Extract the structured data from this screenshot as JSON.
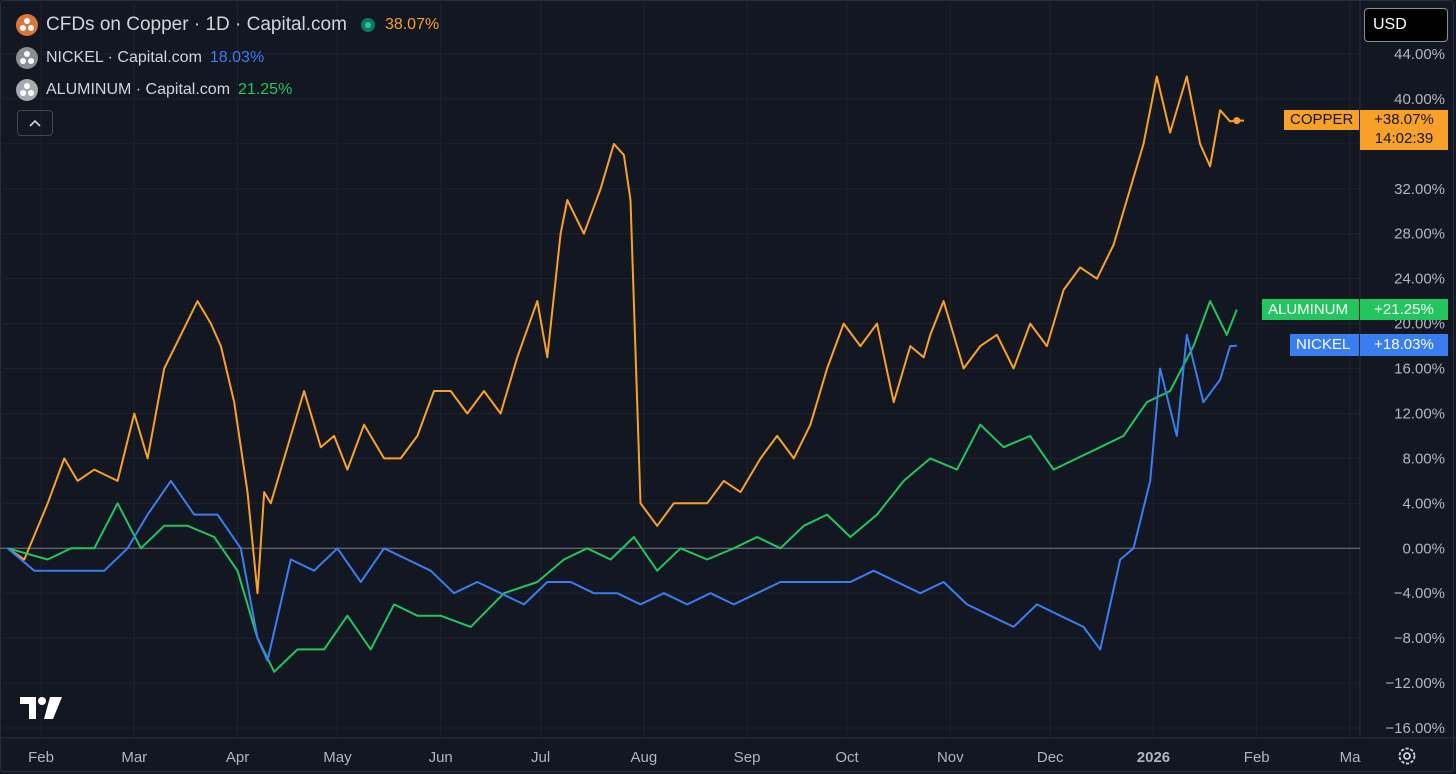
{
  "legend": {
    "main": {
      "title": "CFDs on Copper · 1D · Capital.com",
      "value": "38.07%",
      "color": "#f7a128",
      "icon_color": "#d9773a",
      "status_icon": "market-open-icon"
    },
    "compare": [
      {
        "title": "NICKEL · Capital.com",
        "value": "18.03%",
        "color": "#3a7df0",
        "icon_color": "#8a8f96"
      },
      {
        "title": "ALUMINUM · Capital.com",
        "value": "21.25%",
        "color": "#22c55e",
        "icon_color": "#a6aab0"
      }
    ],
    "collapse_icon": "chevron-up-icon"
  },
  "currency": "USD",
  "badges": {
    "copper": {
      "label": "COPPER",
      "value": "+38.07%",
      "timer": "14:02:39"
    },
    "aluminum": {
      "label": "ALUMINUM",
      "value": "+21.25%"
    },
    "nickel": {
      "label": "NICKEL",
      "value": "+18.03%"
    }
  },
  "logo_icon": "tradingview-logo-icon",
  "settings_icon": "gear-icon",
  "chart_data": {
    "type": "line",
    "y_unit": "%",
    "ylim": [
      -16,
      44
    ],
    "y_ticks": [
      "44.00%",
      "40.00%",
      "36.00%",
      "32.00%",
      "28.00%",
      "24.00%",
      "20.00%",
      "16.00%",
      "12.00%",
      "8.00%",
      "4.00%",
      "0.00%",
      "−4.00%",
      "−8.00%",
      "−12.00%",
      "−16.00%"
    ],
    "y_tick_values": [
      44,
      40,
      36,
      32,
      28,
      24,
      20,
      16,
      12,
      8,
      4,
      0,
      -4,
      -8,
      -12,
      -16
    ],
    "x_ticks": [
      "Feb",
      "Mar",
      "Apr",
      "May",
      "Jun",
      "Jul",
      "Aug",
      "Sep",
      "Oct",
      "Nov",
      "Dec",
      "2026",
      "Feb",
      "Ma"
    ],
    "x_tick_dates": [
      "2025-02-01",
      "2025-03-01",
      "2025-04-01",
      "2025-05-01",
      "2025-06-01",
      "2025-07-01",
      "2025-08-01",
      "2025-09-01",
      "2025-10-01",
      "2025-11-01",
      "2025-12-01",
      "2026-01-01",
      "2026-02-01",
      "2026-03-01"
    ],
    "bold_tick": "2026",
    "x_range": [
      "2025-01-22",
      "2026-03-02"
    ],
    "grid": true,
    "series": [
      {
        "name": "COPPER",
        "color": "#f7a128",
        "x": [
          "2025-01-22",
          "2025-01-27",
          "2025-02-03",
          "2025-02-08",
          "2025-02-12",
          "2025-02-17",
          "2025-02-24",
          "2025-03-01",
          "2025-03-05",
          "2025-03-10",
          "2025-03-15",
          "2025-03-20",
          "2025-03-24",
          "2025-03-27",
          "2025-03-31",
          "2025-04-04",
          "2025-04-07",
          "2025-04-09",
          "2025-04-11",
          "2025-04-15",
          "2025-04-21",
          "2025-04-26",
          "2025-04-30",
          "2025-05-04",
          "2025-05-09",
          "2025-05-15",
          "2025-05-20",
          "2025-05-25",
          "2025-05-30",
          "2025-06-04",
          "2025-06-09",
          "2025-06-14",
          "2025-06-19",
          "2025-06-24",
          "2025-06-30",
          "2025-07-03",
          "2025-07-07",
          "2025-07-09",
          "2025-07-14",
          "2025-07-19",
          "2025-07-23",
          "2025-07-26",
          "2025-07-28",
          "2025-07-31",
          "2025-08-05",
          "2025-08-10",
          "2025-08-15",
          "2025-08-20",
          "2025-08-25",
          "2025-08-30",
          "2025-09-05",
          "2025-09-10",
          "2025-09-15",
          "2025-09-20",
          "2025-09-25",
          "2025-09-30",
          "2025-10-05",
          "2025-10-10",
          "2025-10-15",
          "2025-10-20",
          "2025-10-24",
          "2025-10-26",
          "2025-10-30",
          "2025-11-05",
          "2025-11-10",
          "2025-11-15",
          "2025-11-20",
          "2025-11-25",
          "2025-11-30",
          "2025-12-05",
          "2025-12-10",
          "2025-12-15",
          "2025-12-20",
          "2025-12-25",
          "2025-12-29",
          "2026-01-02",
          "2026-01-06",
          "2026-01-11",
          "2026-01-15",
          "2026-01-18",
          "2026-01-21",
          "2026-01-24",
          "2026-01-26"
        ],
        "y": [
          0,
          -1,
          4,
          8,
          6,
          7,
          6,
          12,
          8,
          16,
          19,
          22,
          20,
          18,
          13,
          5,
          -4,
          5,
          4,
          8,
          14,
          9,
          10,
          7,
          11,
          8,
          8,
          10,
          14,
          14,
          12,
          14,
          12,
          17,
          22,
          17,
          28,
          31,
          28,
          32,
          36,
          35,
          31,
          4,
          2,
          4,
          4,
          4,
          6,
          5,
          8,
          10,
          8,
          11,
          16,
          20,
          18,
          20,
          13,
          18,
          17,
          19,
          22,
          16,
          18,
          19,
          16,
          20,
          18,
          23,
          25,
          24,
          27,
          32,
          36,
          42,
          37,
          42,
          36,
          34,
          39,
          38,
          38.07
        ]
      },
      {
        "name": "ALUMINUM",
        "color": "#22c55e",
        "x": [
          "2025-01-22",
          "2025-02-03",
          "2025-02-10",
          "2025-02-17",
          "2025-02-24",
          "2025-03-03",
          "2025-03-10",
          "2025-03-17",
          "2025-03-25",
          "2025-04-01",
          "2025-04-07",
          "2025-04-12",
          "2025-04-19",
          "2025-04-27",
          "2025-05-04",
          "2025-05-11",
          "2025-05-18",
          "2025-05-25",
          "2025-06-01",
          "2025-06-10",
          "2025-06-20",
          "2025-06-30",
          "2025-07-08",
          "2025-07-15",
          "2025-07-22",
          "2025-07-29",
          "2025-08-05",
          "2025-08-12",
          "2025-08-20",
          "2025-08-28",
          "2025-09-04",
          "2025-09-11",
          "2025-09-18",
          "2025-09-25",
          "2025-10-02",
          "2025-10-10",
          "2025-10-18",
          "2025-10-26",
          "2025-11-03",
          "2025-11-10",
          "2025-11-17",
          "2025-11-25",
          "2025-12-02",
          "2025-12-09",
          "2025-12-16",
          "2025-12-23",
          "2025-12-30",
          "2026-01-06",
          "2026-01-13",
          "2026-01-18",
          "2026-01-23",
          "2026-01-26"
        ],
        "y": [
          0,
          -1,
          0,
          0,
          4,
          0,
          2,
          2,
          1,
          -2,
          -8,
          -11,
          -9,
          -9,
          -6,
          -9,
          -5,
          -6,
          -6,
          -7,
          -4,
          -3,
          -1,
          0,
          -1,
          1,
          -2,
          0,
          -1,
          0,
          1,
          0,
          2,
          3,
          1,
          3,
          6,
          8,
          7,
          11,
          9,
          10,
          7,
          8,
          9,
          10,
          13,
          14,
          18,
          22,
          19,
          21.25
        ]
      },
      {
        "name": "NICKEL",
        "color": "#3a7df0",
        "x": [
          "2025-01-22",
          "2025-01-30",
          "2025-02-06",
          "2025-02-13",
          "2025-02-20",
          "2025-02-27",
          "2025-03-05",
          "2025-03-12",
          "2025-03-19",
          "2025-03-26",
          "2025-04-02",
          "2025-04-07",
          "2025-04-10",
          "2025-04-17",
          "2025-04-24",
          "2025-05-01",
          "2025-05-08",
          "2025-05-15",
          "2025-05-22",
          "2025-05-29",
          "2025-06-05",
          "2025-06-12",
          "2025-06-19",
          "2025-06-26",
          "2025-07-03",
          "2025-07-10",
          "2025-07-17",
          "2025-07-24",
          "2025-07-31",
          "2025-08-07",
          "2025-08-14",
          "2025-08-21",
          "2025-08-28",
          "2025-09-04",
          "2025-09-11",
          "2025-09-18",
          "2025-09-25",
          "2025-10-02",
          "2025-10-09",
          "2025-10-16",
          "2025-10-23",
          "2025-10-30",
          "2025-11-06",
          "2025-11-13",
          "2025-11-20",
          "2025-11-27",
          "2025-12-04",
          "2025-12-11",
          "2025-12-16",
          "2025-12-22",
          "2025-12-26",
          "2025-12-31",
          "2026-01-03",
          "2026-01-08",
          "2026-01-11",
          "2026-01-16",
          "2026-01-21",
          "2026-01-24",
          "2026-01-26"
        ],
        "y": [
          0,
          -2,
          -2,
          -2,
          -2,
          0,
          3,
          6,
          3,
          3,
          0,
          -8,
          -10,
          -1,
          -2,
          0,
          -3,
          0,
          -1,
          -2,
          -4,
          -3,
          -4,
          -5,
          -3,
          -3,
          -4,
          -4,
          -5,
          -4,
          -5,
          -4,
          -5,
          -4,
          -3,
          -3,
          -3,
          -3,
          -2,
          -3,
          -4,
          -3,
          -5,
          -6,
          -7,
          -5,
          -6,
          -7,
          -9,
          -1,
          0,
          6,
          16,
          10,
          19,
          13,
          15,
          18,
          18.03
        ]
      }
    ]
  }
}
